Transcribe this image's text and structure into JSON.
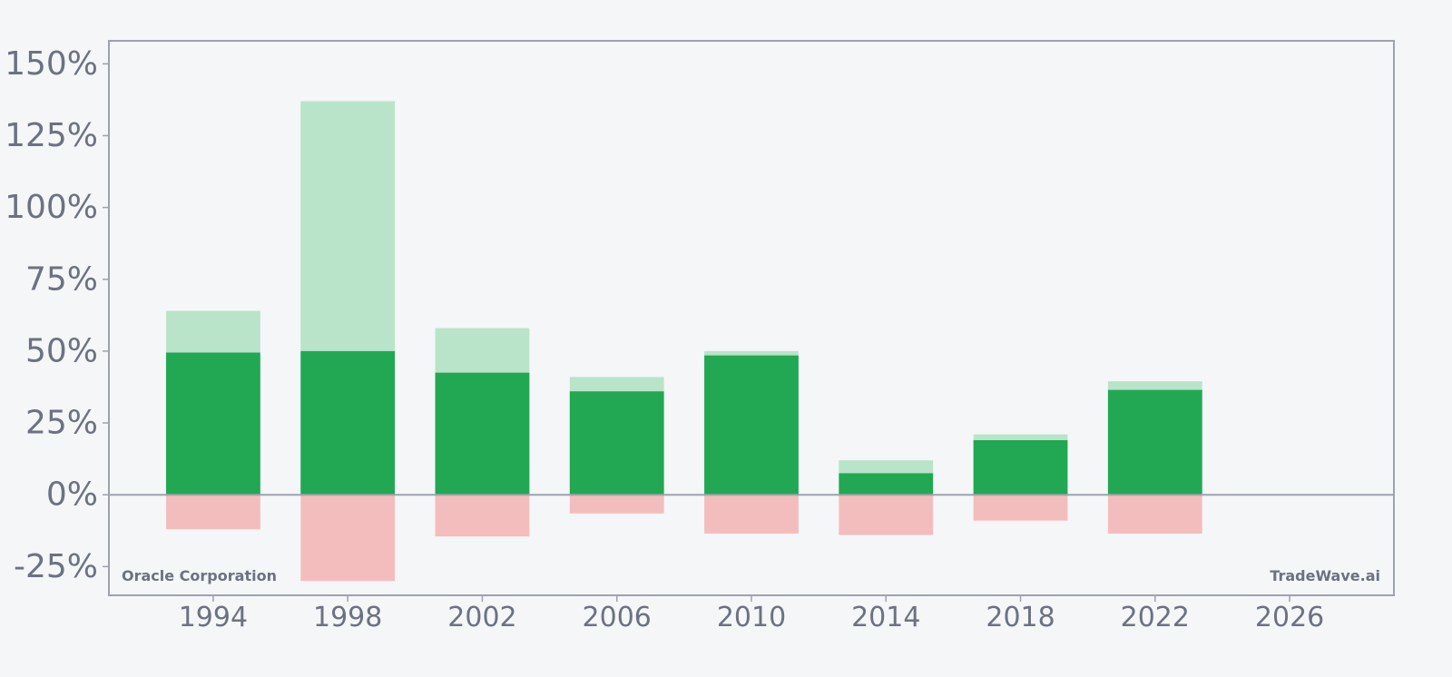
{
  "chart_data": {
    "type": "bar",
    "x": [
      1994,
      1998,
      2002,
      2006,
      2010,
      2014,
      2018,
      2022
    ],
    "series": [
      {
        "values": [
          64.0,
          137.0,
          58.0,
          41.0,
          50.0,
          12.0,
          21.0,
          39.5
        ]
      },
      {
        "values": [
          49.5,
          50.0,
          42.5,
          36.0,
          48.5,
          7.5,
          19.0,
          36.5
        ]
      },
      {
        "values": [
          -12.0,
          -30.0,
          -14.5,
          -6.5,
          -13.5,
          -14.0,
          -9.0,
          -13.5
        ]
      }
    ],
    "colors": {
      "max_gain": "#b9e4c9",
      "gain": "#22a853",
      "max_loss": "#f4bdbd",
      "axis": "#9ca3af",
      "text": "#6b7280"
    },
    "ylim": [
      -35,
      158
    ],
    "xlim": [
      1990.9,
      2029.1
    ],
    "yticks": [
      -25,
      0,
      25,
      50,
      75,
      100,
      125,
      150
    ],
    "ytick_labels": [
      "-25%",
      "0%",
      "25%",
      "50%",
      "75%",
      "100%",
      "125%",
      "150%"
    ],
    "xticks": [
      1994,
      1998,
      2002,
      2006,
      2010,
      2014,
      2018,
      2022,
      2026
    ],
    "xtick_labels": [
      "1994",
      "1998",
      "2002",
      "2006",
      "2010",
      "2014",
      "2018",
      "2022",
      "2026"
    ],
    "bar_width_years": 2.8,
    "grid": false,
    "annotations": {
      "company": "Oracle Corporation",
      "brand": "TradeWave.ai"
    }
  }
}
